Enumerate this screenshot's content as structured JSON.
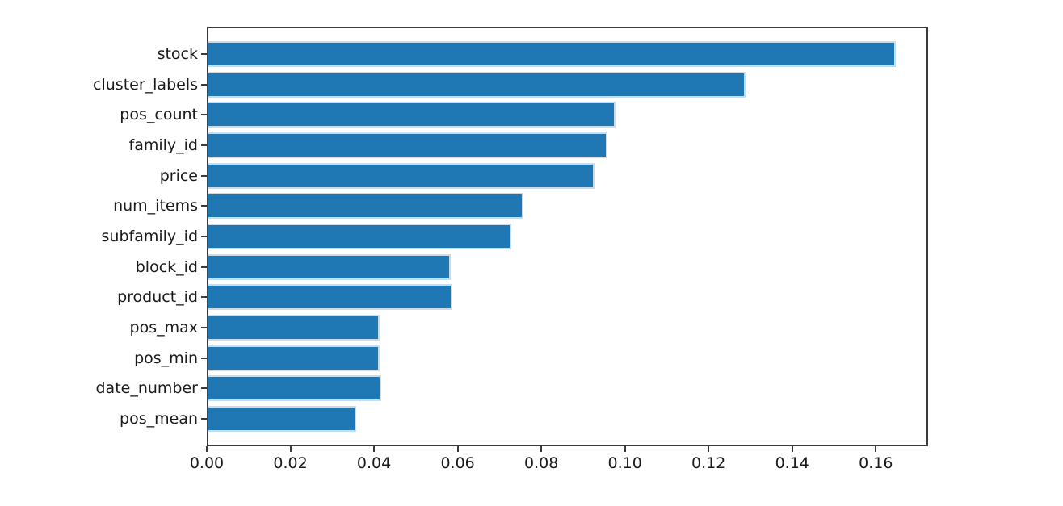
{
  "chart_data": {
    "type": "bar",
    "orientation": "horizontal",
    "title": "",
    "xlabel": "",
    "ylabel": "",
    "grid": false,
    "legend": null,
    "bar_color": "#1f77b4",
    "categories": [
      "stock",
      "cluster_labels",
      "pos_count",
      "family_id",
      "price",
      "num_items",
      "subfamily_id",
      "block_id",
      "product_id",
      "pos_max",
      "pos_min",
      "date_number",
      "pos_mean"
    ],
    "values": [
      0.164,
      0.128,
      0.097,
      0.095,
      0.092,
      0.075,
      0.072,
      0.0575,
      0.058,
      0.0405,
      0.0405,
      0.041,
      0.035
    ],
    "xlim": [
      0,
      0.1725
    ],
    "x_ticks": [
      0.0,
      0.02,
      0.04,
      0.06,
      0.08,
      0.1,
      0.12,
      0.14,
      0.16
    ],
    "x_tick_labels": [
      "0.00",
      "0.02",
      "0.04",
      "0.06",
      "0.08",
      "0.10",
      "0.12",
      "0.14",
      "0.16"
    ]
  }
}
